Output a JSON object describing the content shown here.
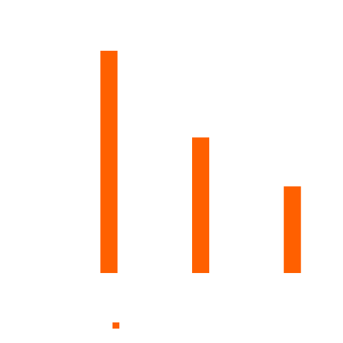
{
  "chart_data": {
    "type": "bar",
    "categories": [
      null,
      null,
      null
    ],
    "values": [
      100,
      61,
      39
    ],
    "color": "#ff6000",
    "ylim": [
      0,
      100
    ],
    "legend": true
  }
}
